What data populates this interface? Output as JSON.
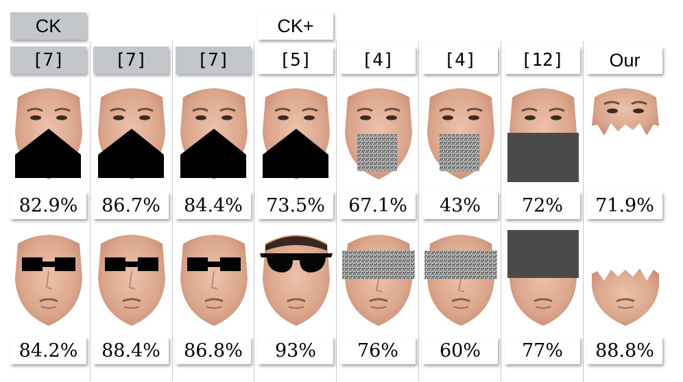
{
  "datasets": [
    {
      "label": "CK",
      "style": "gray"
    },
    {
      "label": "CK+",
      "style": "white"
    }
  ],
  "columns": [
    {
      "ref": "[7]",
      "style": "gray"
    },
    {
      "ref": "[7]",
      "style": "gray"
    },
    {
      "ref": "[7]",
      "style": "gray"
    },
    {
      "ref": "[5]",
      "style": "white"
    },
    {
      "ref": "[4]",
      "style": "white"
    },
    {
      "ref": "[4]",
      "style": "white"
    },
    {
      "ref": "[12]",
      "style": "white"
    },
    {
      "ref": "Our",
      "style": "white"
    }
  ],
  "rows": [
    {
      "region": "lower-face",
      "cells": [
        {
          "occlusion": "black-pentagon-mouth",
          "accuracy": "82.9%"
        },
        {
          "occlusion": "black-pentagon-mouth",
          "accuracy": "86.7%"
        },
        {
          "occlusion": "black-pentagon-mouth",
          "accuracy": "84.4%"
        },
        {
          "occlusion": "black-pentagon-mouth",
          "accuracy": "73.5%"
        },
        {
          "occlusion": "noise-square-mouth",
          "accuracy": "67.1%"
        },
        {
          "occlusion": "noise-square-mouth",
          "accuracy": "43%"
        },
        {
          "occlusion": "gray-rect-lower",
          "accuracy": "72%"
        },
        {
          "occlusion": "crop-lower-removed",
          "accuracy": "71.9%"
        }
      ]
    },
    {
      "region": "eyes",
      "cells": [
        {
          "occlusion": "black-eye-bar",
          "accuracy": "84.2%"
        },
        {
          "occlusion": "black-eye-bar",
          "accuracy": "88.4%"
        },
        {
          "occlusion": "black-eye-bar",
          "accuracy": "86.8%"
        },
        {
          "occlusion": "sunglasses",
          "accuracy": "93%"
        },
        {
          "occlusion": "noise-strip-eyes",
          "accuracy": "76%"
        },
        {
          "occlusion": "noise-strip-eyes",
          "accuracy": "60%"
        },
        {
          "occlusion": "gray-rect-upper",
          "accuracy": "77%"
        },
        {
          "occlusion": "crop-upper-removed",
          "accuracy": "88.8%"
        }
      ]
    }
  ],
  "colors": {
    "header_gray": "#c3c7cc",
    "skin": "#e2b39b",
    "occluder_black": "#000000",
    "occluder_gray": "#4a4a4a"
  }
}
